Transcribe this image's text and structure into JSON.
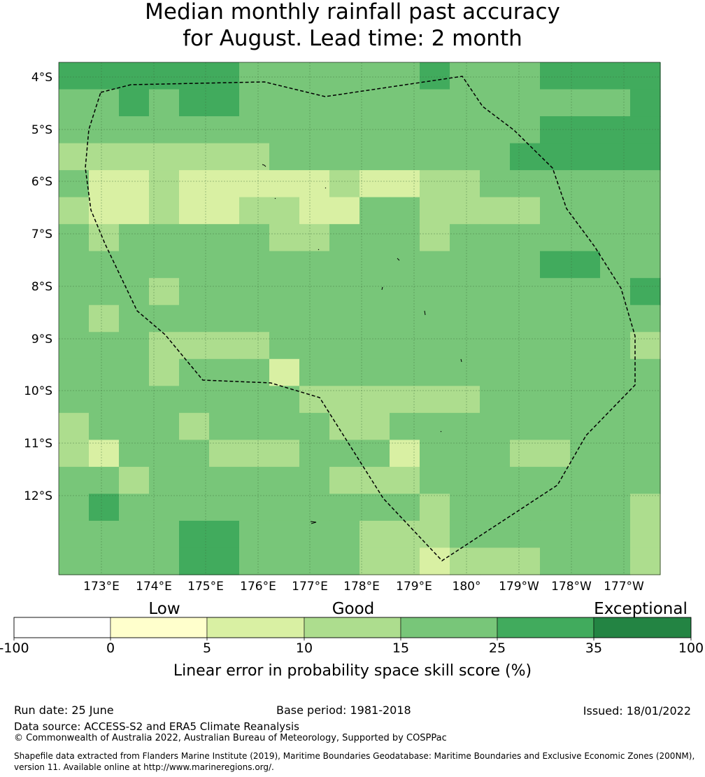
{
  "title_line1": "Median monthly rainfall past accuracy",
  "title_line2": "for August. Lead time: 2 month",
  "map": {
    "lat_labels": [
      "4°S",
      "5°S",
      "6°S",
      "7°S",
      "8°S",
      "9°S",
      "10°S",
      "11°S",
      "12°S"
    ],
    "lon_labels": [
      "173°E",
      "174°E",
      "175°E",
      "176°E",
      "177°E",
      "178°E",
      "179°E",
      "180°",
      "179°W",
      "178°W",
      "177°W"
    ],
    "color_codes": [
      "0",
      "1",
      "2",
      "3",
      "4",
      "5",
      "6"
    ],
    "grid": [
      "55555544444454445555",
      "44545544444444444445",
      "44444444444444445555",
      "33333334444444455555",
      "42232222232233444444",
      "32232233224433334444",
      "43444443344434444444",
      "44444444444444445544",
      "44434444444444444445",
      "43444444444444444444",
      "44433334444444444443",
      "44434442444444444444",
      "44444444333333444444",
      "34443444433444444444",
      "32444333444244433444",
      "44344444433344444444",
      "45444444444434444443",
      "44445544443334444443",
      "44445544443323334443"
    ]
  },
  "colorbar": {
    "category_labels": [
      "Low",
      "Good",
      "Exceptional"
    ],
    "tick_labels": [
      "-100",
      "0",
      "5",
      "10",
      "15",
      "25",
      "35",
      "100"
    ],
    "colors": [
      "#ffffff",
      "#ffffcc",
      "#d9f0a3",
      "#addd8e",
      "#78c679",
      "#41ab5d",
      "#238443"
    ],
    "xlabel": "Linear error in probability space skill score (%)"
  },
  "footer": {
    "run_date": "Run date: 25 June",
    "base_period": "Base period: 1981-2018",
    "issued": "Issued: 18/01/2022",
    "data_source": "Data source: ACCESS-S2 and ERA5 Climate Reanalysis",
    "copyright": "© Commonwealth of Australia 2022, Australian Bureau of Meteorology, Supported by COSPPac",
    "shapefile": "Shapefile data extracted from Flanders Marine Institute (2019), Maritime Boundaries Geodatabase: Maritime Boundaries and Exclusive Economic Zones (200NM), version 11. Available online at http://www.marineregions.org/."
  }
}
